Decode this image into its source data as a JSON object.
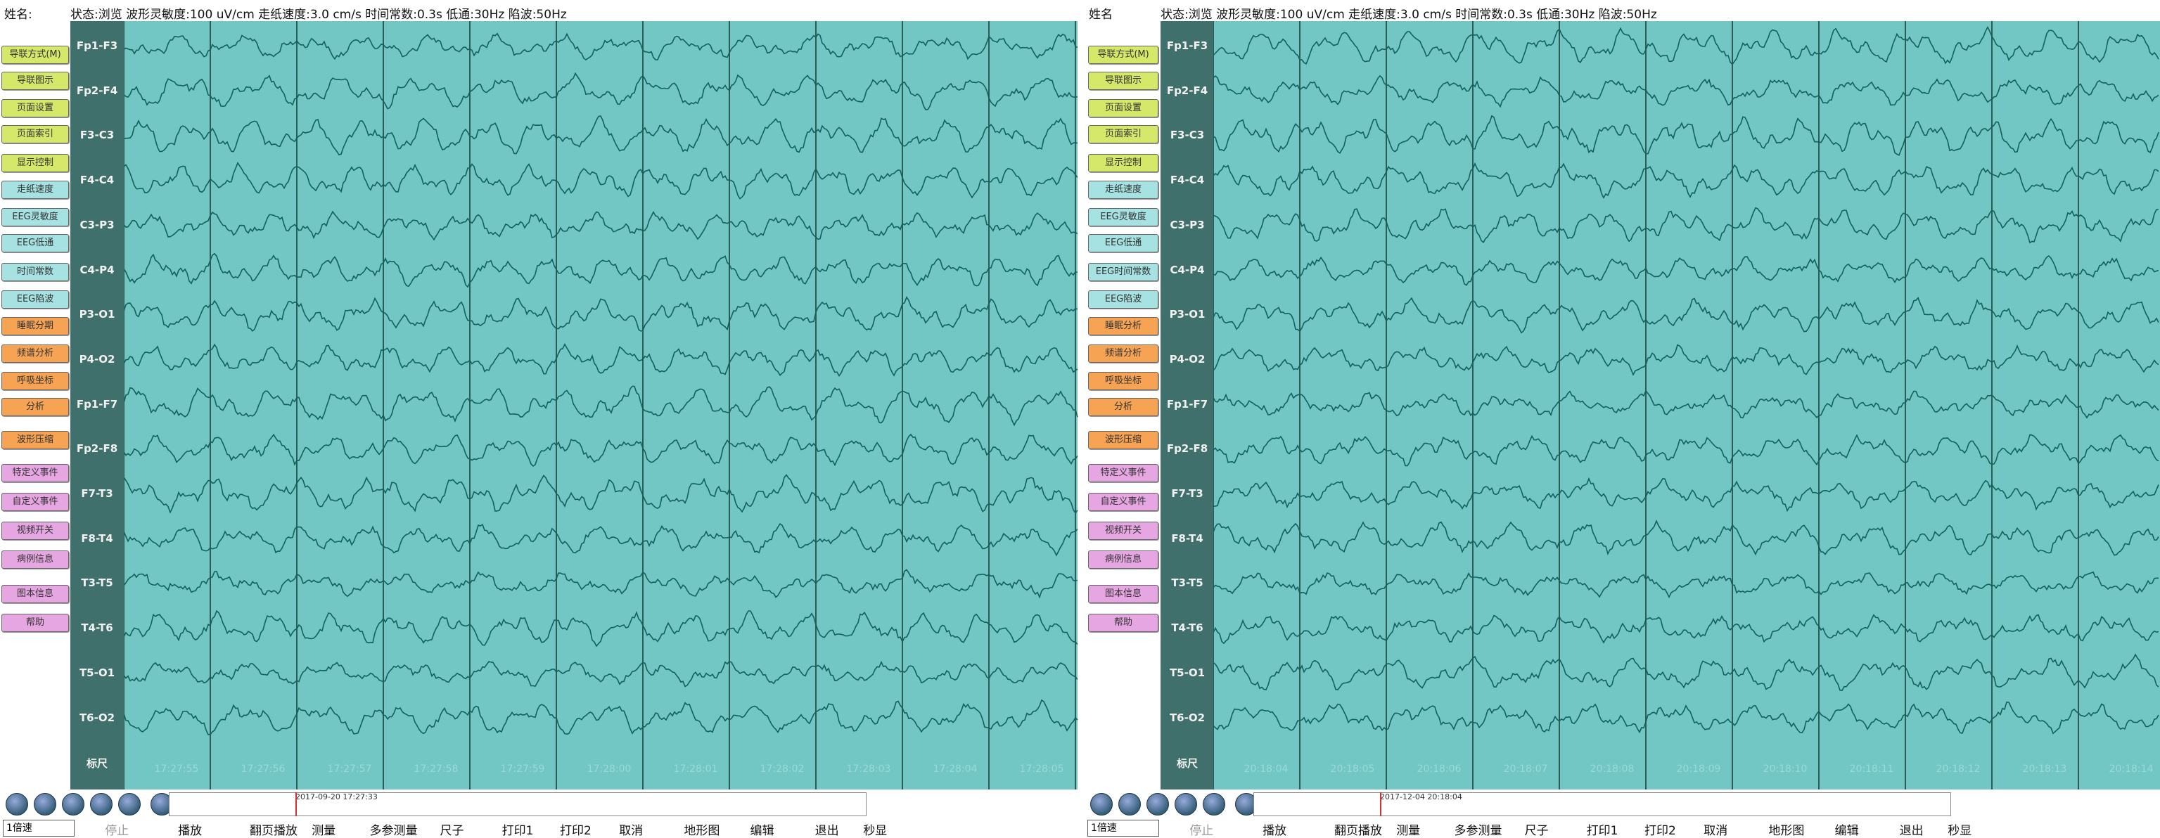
{
  "panels": [
    {
      "name_label": "姓名:",
      "status": "状态:浏览 波形灵敏度:100 uV/cm 走纸速度:3.0 cm/s 时间常数:0.3s 低通:30Hz 陷波:50Hz",
      "buttons": [
        "导联方式(M)",
        "导联图示",
        "页面设置",
        "页面索引",
        "显示控制",
        "走纸速度",
        "EEG灵敏度",
        "EEG低通",
        "时间常数",
        "EEG陷波",
        "睡眠分期",
        "频谱分析",
        "呼吸坐标",
        "分析",
        "波形压缩",
        "特定义事件",
        "自定义事件",
        "视频开关",
        "病例信息",
        "图本信息",
        "帮助"
      ],
      "channels": [
        "Fp1-F3",
        "Fp2-F4",
        "F3-C3",
        "F4-C4",
        "C3-P3",
        "C4-P4",
        "P3-O1",
        "P4-O2",
        "Fp1-F7",
        "Fp2-F8",
        "F7-T3",
        "F8-T4",
        "T3-T5",
        "T4-T6",
        "T5-O1",
        "T6-O2",
        "标尺"
      ],
      "times": [
        "17:27:55",
        "17:27:56",
        "17:27:57",
        "17:27:58",
        "17:27:59",
        "17:28:00",
        "17:28:01",
        "17:28:02",
        "17:28:03",
        "17:28:04",
        "17:28:05"
      ],
      "timestamp": "2017-09-20 17:27:33",
      "speed": "1倍速",
      "toolbar": [
        "停止",
        "播放",
        "翻页播放",
        "测量",
        "多参测量",
        "尺子",
        "打印1",
        "打印2",
        "取消",
        "地形图",
        "编辑",
        "退出",
        "秒显"
      ]
    },
    {
      "name_label": "姓名",
      "status": "状态:浏览 波形灵敏度:100 uV/cm 走纸速度:3.0 cm/s 时间常数:0.3s 低通:30Hz 陷波:50Hz",
      "buttons": [
        "导联方式(M)",
        "导联图示",
        "页面设置",
        "页面索引",
        "显示控制",
        "走纸速度",
        "EEG灵敏度",
        "EEG低通",
        "EEG时间常数",
        "EEG陷波",
        "睡眠分析",
        "频谱分析",
        "呼吸坐标",
        "分析",
        "波形压缩",
        "特定义事件",
        "自定义事件",
        "视频开关",
        "病例信息",
        "图本信息",
        "帮助"
      ],
      "channels": [
        "Fp1-F3",
        "Fp2-F4",
        "F3-C3",
        "F4-C4",
        "C3-P3",
        "C4-P4",
        "P3-O1",
        "P4-O2",
        "Fp1-F7",
        "Fp2-F8",
        "F7-T3",
        "F8-T4",
        "T3-T5",
        "T4-T6",
        "T5-O1",
        "T6-O2",
        "标尺"
      ],
      "times": [
        "20:18:04",
        "20:18:05",
        "20:18:06",
        "20:18:07",
        "20:18:08",
        "20:18:09",
        "20:18:10",
        "20:18:11",
        "20:18:12",
        "20:18:13",
        "20:18:14"
      ],
      "timestamp": "2017-12-04 20:18:04",
      "speed": "1倍速",
      "toolbar": [
        "停止",
        "播放",
        "翻页播放",
        "测量",
        "多参测量",
        "尺子",
        "打印1",
        "打印2",
        "取消",
        "地形图",
        "编辑",
        "退出",
        "秒显"
      ]
    }
  ]
}
